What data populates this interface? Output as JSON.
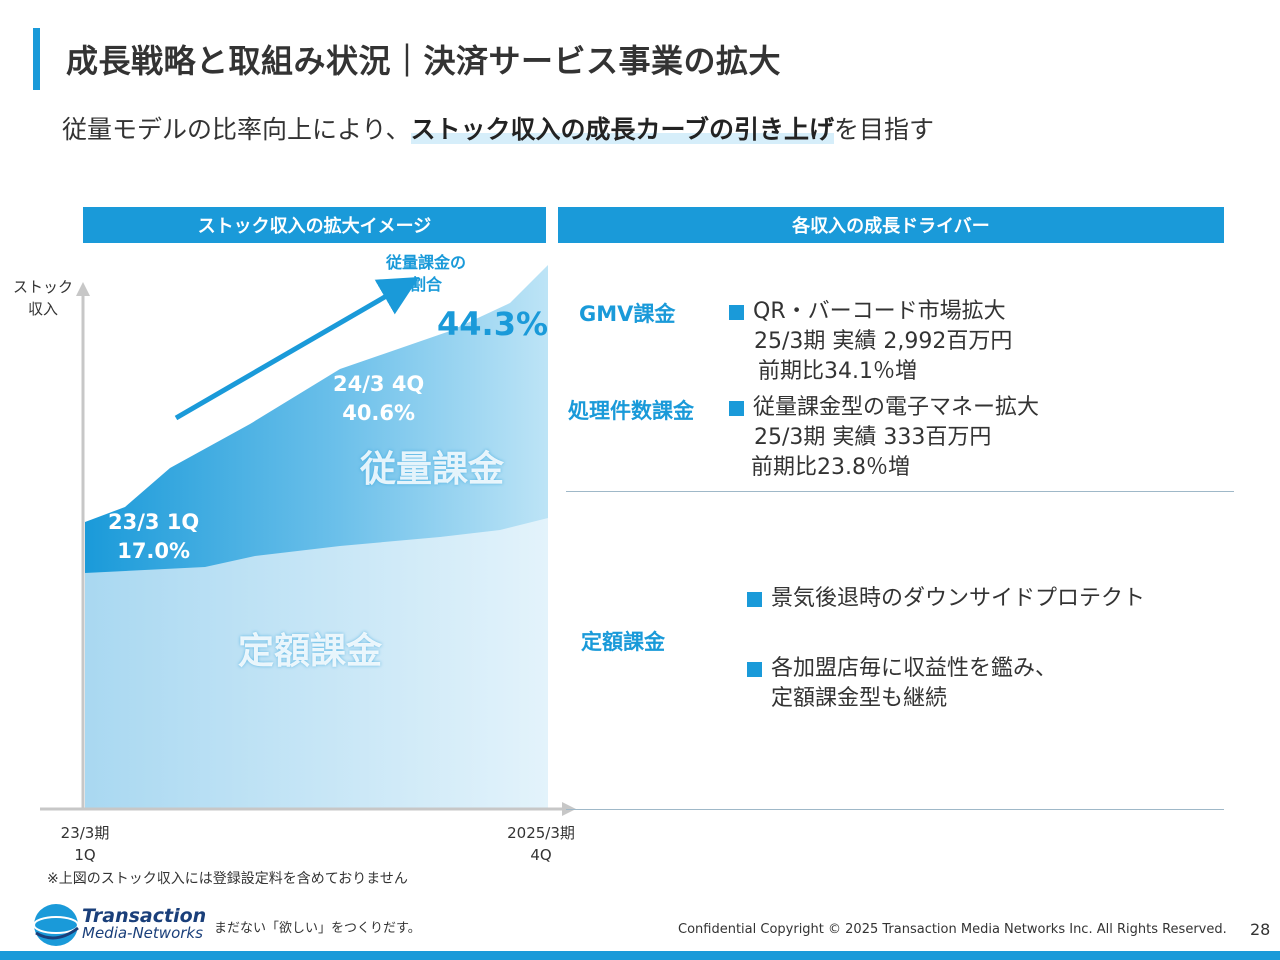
{
  "title": "成長戦略と取組み状況｜決済サービス事業の拡大",
  "subtitle": {
    "prefix": "従量モデルの比率向上により、",
    "emphasis": "ストック収入の成長カーブの引き上げ",
    "suffix": "を目指す"
  },
  "left_panel": {
    "header": "ストック収入の拡大イメージ",
    "y_label": [
      "ストック",
      "収入"
    ],
    "x_start": [
      "23/3期",
      "1Q"
    ],
    "x_end": [
      "2025/3期",
      "4Q"
    ],
    "start_point": [
      "23/3 1Q",
      "17.0%"
    ],
    "mid_point": [
      "24/3 4Q",
      "40.6%"
    ],
    "end_label": [
      "従量課金の",
      "割合"
    ],
    "end_value": "44.3%",
    "variable_area_label": "従量課金",
    "fixed_area_label": "定額課金",
    "note": "※上図のストック収入には登録設定料を含めておりません"
  },
  "chart_data": {
    "type": "area",
    "title": "ストック収入の拡大イメージ",
    "xlabel": "",
    "ylabel": "ストック収入",
    "x": [
      "23/3期 1Q",
      "2025/3期 4Q"
    ],
    "series": [
      {
        "name": "定額課金"
      },
      {
        "name": "従量課金"
      }
    ],
    "annotations": [
      {
        "point": "23/3 1Q",
        "variable_ratio_pct": 17.0
      },
      {
        "point": "24/3 4Q",
        "variable_ratio_pct": 40.6
      },
      {
        "point": "2025/3期 4Q",
        "variable_ratio_pct": 44.3
      }
    ],
    "colors": {
      "fixed": "#cfe8f6",
      "variable_dark": "#1a9ad9",
      "variable_light": "#aad9f2"
    }
  },
  "right_panel": {
    "header": "各収入の成長ドライバー",
    "drivers": [
      {
        "name": "GMV課金",
        "bullet": "QR・バーコード市場拡大",
        "lines": [
          "25/3期 実績 2,992百万円",
          "前期比34.1％増"
        ]
      },
      {
        "name": "処理件数課金",
        "bullet": "従量課金型の電子マネー拡大",
        "lines": [
          "25/3期 実績 333百万円",
          "前期比23.8％増"
        ]
      }
    ],
    "fixed": {
      "name": "定額課金",
      "bullet1": "景気後退時のダウンサイドプロテクト",
      "bullet2": "各加盟店毎に収益性を鑑み、",
      "bullet2_cont": "定額課金型も継続"
    }
  },
  "footer": {
    "logo_line1": "Transaction",
    "logo_line2": "Media-Networks",
    "tagline": "まだない「欲しい」をつくりだす。",
    "copyright": "Confidential  Copyright © 2025 Transaction Media Networks Inc. All Rights Reserved.",
    "page": "28"
  }
}
